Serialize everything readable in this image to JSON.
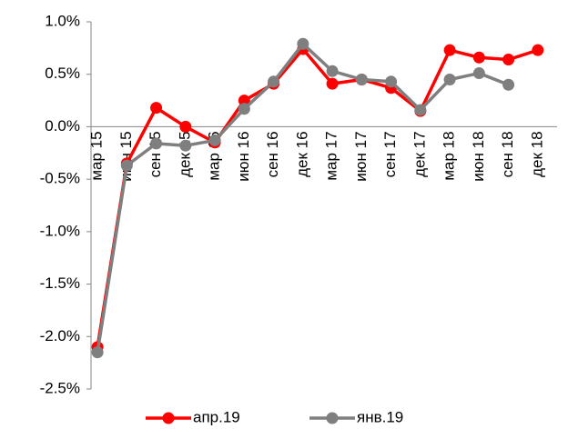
{
  "chart_data": {
    "type": "line",
    "categories": [
      "мар 15",
      "июн 15",
      "сен 15",
      "дек 15",
      "мар 16",
      "июн 16",
      "сен 16",
      "дек 16",
      "мар 17",
      "июн 17",
      "сен 17",
      "дек 17",
      "мар 18",
      "июн 18",
      "сен 18",
      "дек 18"
    ],
    "series": [
      {
        "name": "апр.19",
        "color": "#ff0000",
        "values": [
          -2.1,
          -0.35,
          0.18,
          0.0,
          -0.15,
          0.25,
          0.41,
          0.74,
          0.41,
          0.45,
          0.37,
          0.15,
          0.73,
          0.66,
          0.64,
          0.73
        ]
      },
      {
        "name": "янв.19",
        "color": "#7f7f7f",
        "values": [
          -2.15,
          -0.37,
          -0.16,
          -0.18,
          -0.13,
          0.17,
          0.43,
          0.79,
          0.53,
          0.45,
          0.43,
          0.16,
          0.45,
          0.51,
          0.4,
          null
        ]
      }
    ],
    "ylim": [
      -2.5,
      1.0
    ],
    "yticks": [
      {
        "value": -2.5,
        "label": "-2.5%"
      },
      {
        "value": -2.0,
        "label": "-2.0%"
      },
      {
        "value": -1.5,
        "label": "-1.5%"
      },
      {
        "value": -1.0,
        "label": "-1.0%"
      },
      {
        "value": -0.5,
        "label": "-0.5%"
      },
      {
        "value": 0.0,
        "label": "0.0%"
      },
      {
        "value": 0.5,
        "label": "0.5%"
      },
      {
        "value": 1.0,
        "label": "1.0%"
      }
    ],
    "grid": false,
    "legend": "bottom"
  }
}
